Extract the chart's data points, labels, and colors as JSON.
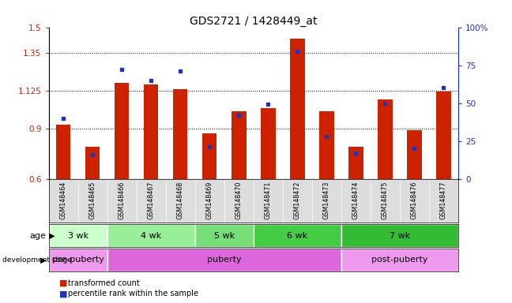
{
  "title": "GDS2721 / 1428449_at",
  "samples": [
    "GSM148464",
    "GSM148465",
    "GSM148466",
    "GSM148467",
    "GSM148468",
    "GSM148469",
    "GSM148470",
    "GSM148471",
    "GSM148472",
    "GSM148473",
    "GSM148474",
    "GSM148475",
    "GSM148476",
    "GSM148477"
  ],
  "transformed_count": [
    0.92,
    0.79,
    1.17,
    1.16,
    1.13,
    0.87,
    1.0,
    1.02,
    1.43,
    1.0,
    0.79,
    1.07,
    0.89,
    1.12
  ],
  "percentile_rank": [
    40,
    16,
    72,
    65,
    71,
    21,
    42,
    49,
    84,
    28,
    17,
    50,
    20,
    60
  ],
  "ylim_left": [
    0.6,
    1.5
  ],
  "ylim_right": [
    0,
    100
  ],
  "yticks_left": [
    0.6,
    0.9,
    1.125,
    1.35,
    1.5
  ],
  "ytick_labels_left": [
    "0.6",
    "0.9",
    "1.125",
    "1.35",
    "1.5"
  ],
  "yticks_right": [
    0,
    25,
    50,
    75,
    100
  ],
  "ytick_labels_right": [
    "0",
    "25",
    "50",
    "75",
    "100%"
  ],
  "bar_color": "#cc2200",
  "dot_color": "#2233bb",
  "background_color": "#ffffff",
  "age_groups": [
    {
      "label": "3 wk",
      "start": 0,
      "end": 1,
      "color": "#ccffcc"
    },
    {
      "label": "4 wk",
      "start": 2,
      "end": 4,
      "color": "#99ee99"
    },
    {
      "label": "5 wk",
      "start": 5,
      "end": 6,
      "color": "#77dd77"
    },
    {
      "label": "6 wk",
      "start": 7,
      "end": 9,
      "color": "#44cc44"
    },
    {
      "label": "7 wk",
      "start": 10,
      "end": 13,
      "color": "#33bb33"
    }
  ],
  "dev_stage_groups": [
    {
      "label": "pre-puberty",
      "start": 0,
      "end": 1,
      "color": "#ee99ee"
    },
    {
      "label": "puberty",
      "start": 2,
      "end": 9,
      "color": "#dd66dd"
    },
    {
      "label": "post-puberty",
      "start": 10,
      "end": 13,
      "color": "#ee99ee"
    }
  ],
  "grid_lines": [
    0.9,
    1.125,
    1.35
  ],
  "bar_width": 0.5,
  "base_value": 0.6
}
